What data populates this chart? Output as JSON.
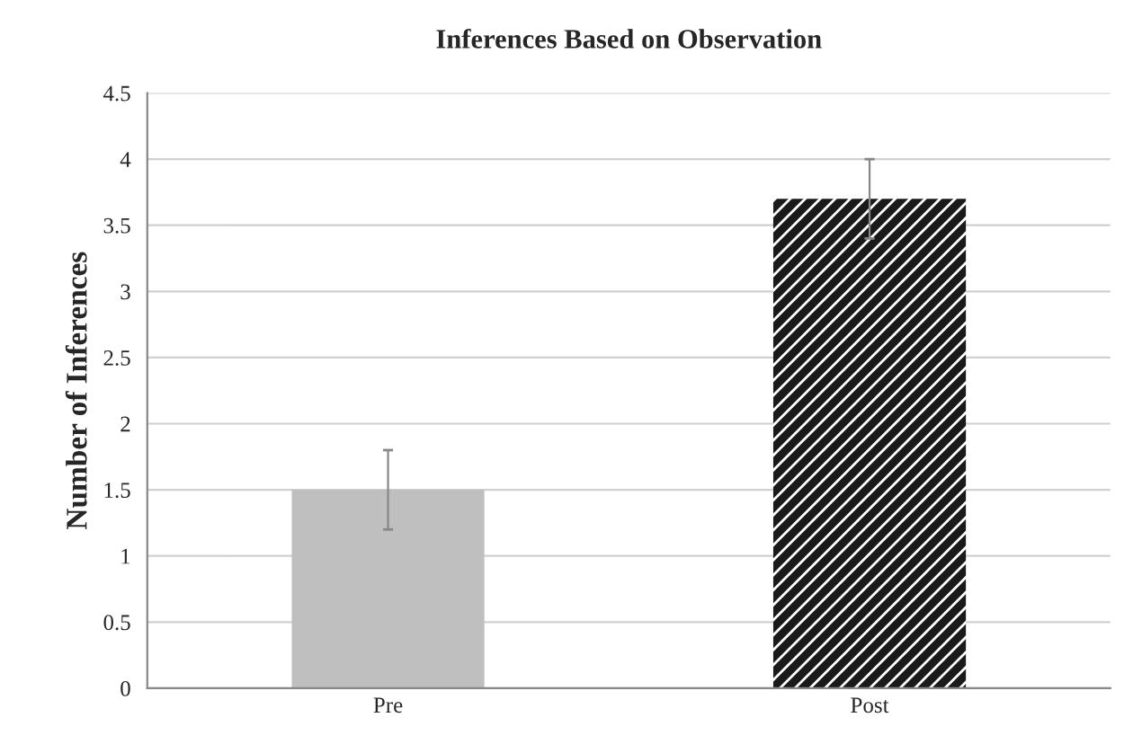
{
  "chart_data": {
    "type": "bar",
    "title": "Inferences Based on Observation",
    "ylabel": "Number of Inferences",
    "categories": [
      "Pre",
      "Post"
    ],
    "values": [
      1.5,
      3.7
    ],
    "colors": [
      "#bfbfbf",
      "#1a1a1a"
    ],
    "errors": [
      0.3,
      0.3
    ],
    "ylim": [
      0,
      4.5
    ],
    "yticks": [
      0,
      0.5,
      1,
      1.5,
      2,
      2.5,
      3,
      3.5,
      4,
      4.5
    ],
    "grid": "y"
  }
}
